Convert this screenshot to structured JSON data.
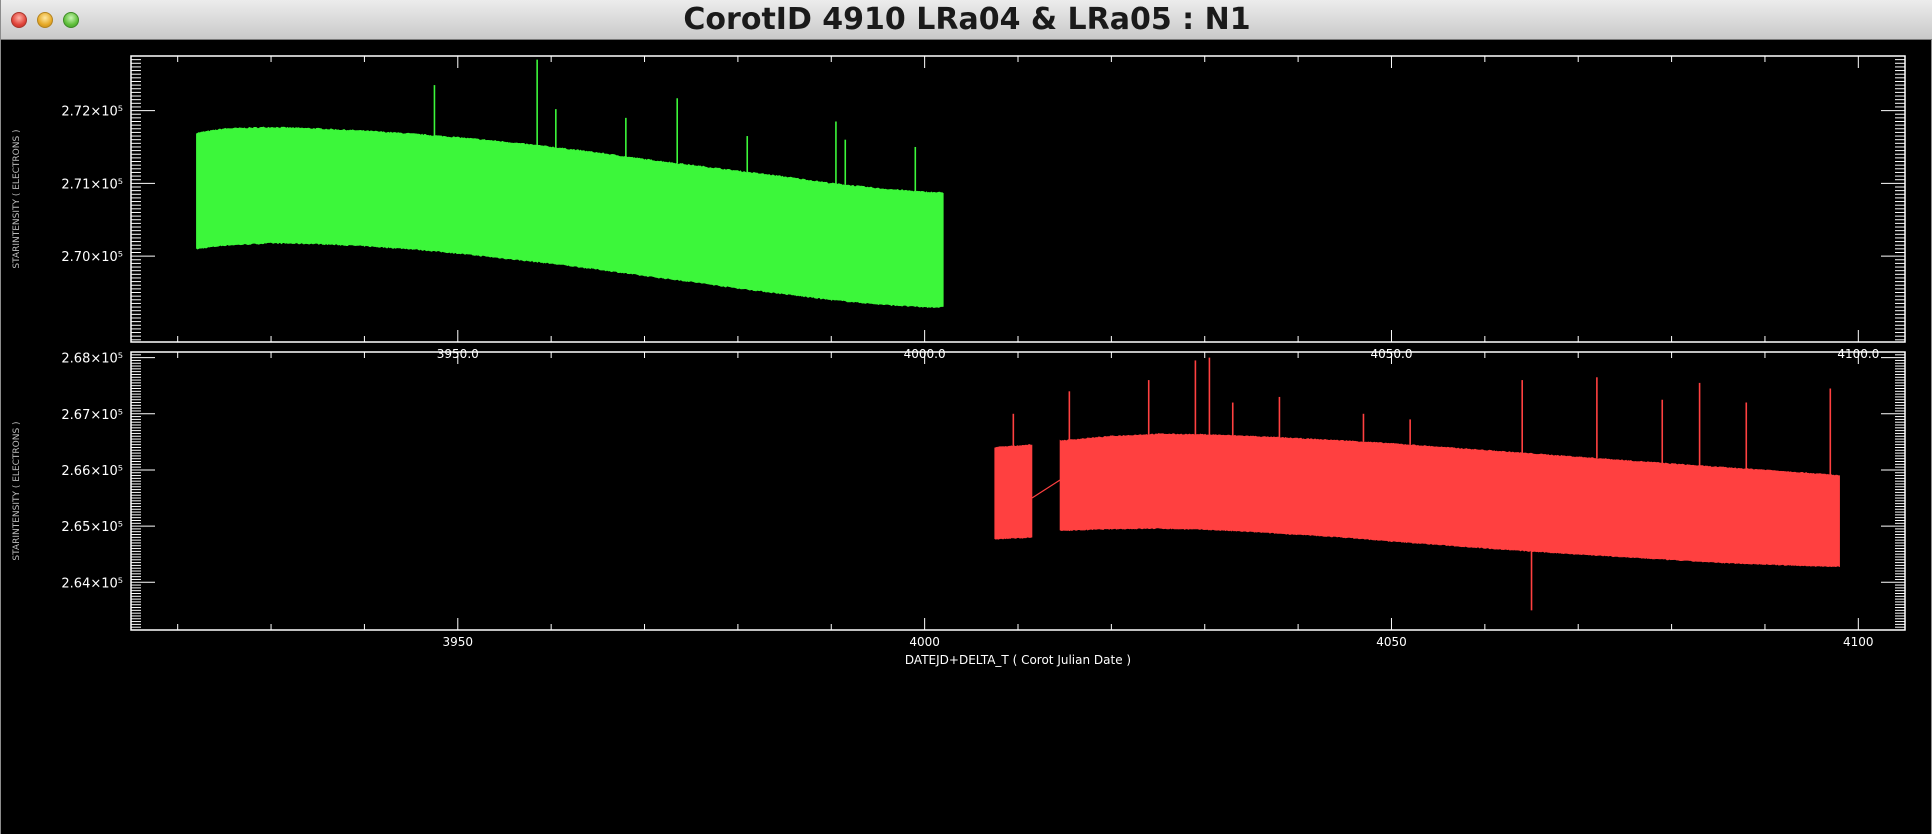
{
  "window": {
    "title": "CorotID 4910 LRa04 & LRa05 : N1",
    "controls": [
      "close-icon",
      "minimize-icon",
      "maximize-icon"
    ]
  },
  "chart_data": [
    {
      "type": "line",
      "panel": "top",
      "title": "",
      "xlabel": "",
      "ylabel": "STARINTENSITY ( ELECTRONS )",
      "xlim": [
        3915,
        4105
      ],
      "ylim": [
        268820.0,
        272750.0
      ],
      "x_ticks": [
        3950,
        4000,
        4050,
        4100
      ],
      "x_tick_labels": [
        "3950.0",
        "4000.0",
        "4050.0",
        "4100.0"
      ],
      "y_ticks": [
        270000.0,
        271000.0,
        272000.0
      ],
      "y_tick_labels": [
        "2.70×10⁵",
        "2.71×10⁵",
        "2.72×10⁵"
      ],
      "grid": false,
      "color": "#3cf73a",
      "series": [
        {
          "x": [
            3922,
            3925,
            3930,
            3935,
            3940,
            3945,
            3950,
            3955,
            3960,
            3965,
            3970,
            3975,
            3980,
            3985,
            3990,
            3995,
            4000,
            4002
          ],
          "upper": [
            271690.0,
            271750.0,
            271770.0,
            271750.0,
            271720.0,
            271680.0,
            271630.0,
            271570.0,
            271500.0,
            271420.0,
            271330.0,
            271250.0,
            271170.0,
            271090.0,
            271000.0,
            270930.0,
            270880.0,
            270870.0
          ],
          "lower": [
            270100.0,
            270150.0,
            270180.0,
            270170.0,
            270140.0,
            270100.0,
            270040.0,
            269970.0,
            269900.0,
            269820.0,
            269730.0,
            269650.0,
            269560.0,
            269480.0,
            269400.0,
            269340.0,
            269300.0,
            269300.0
          ]
        }
      ],
      "spikes": [
        {
          "x": 3947.5,
          "y": 272350.0
        },
        {
          "x": 3958.5,
          "y": 272700.0
        },
        {
          "x": 3960.5,
          "y": 272020.0
        },
        {
          "x": 3968.0,
          "y": 271900.0
        },
        {
          "x": 3973.5,
          "y": 272170.0
        },
        {
          "x": 3981.0,
          "y": 271650.0
        },
        {
          "x": 3990.5,
          "y": 271850.0
        },
        {
          "x": 3991.5,
          "y": 271600.0
        },
        {
          "x": 3999.0,
          "y": 271500.0
        }
      ]
    },
    {
      "type": "line",
      "panel": "bottom",
      "title": "",
      "xlabel": "DATEJD+DELTA_T ( Corot Julian Date )",
      "ylabel": "STARINTENSITY ( ELECTRONS )",
      "xlim": [
        3915,
        4105
      ],
      "ylim": [
        263150.0,
        268100.0
      ],
      "x_ticks": [
        3950,
        4000,
        4050,
        4100
      ],
      "x_tick_labels": [
        "3950",
        "4000",
        "4050",
        "4100"
      ],
      "y_ticks": [
        264000.0,
        265000.0,
        266000.0,
        267000.0,
        268000.0
      ],
      "y_tick_labels": [
        "2.64×10⁵",
        "2.65×10⁵",
        "2.66×10⁵",
        "2.67×10⁵",
        "2.68×10⁵"
      ],
      "grid": false,
      "color": "#ff4040",
      "series": [
        {
          "x": [
            4007.5,
            4011.5
          ],
          "upper": [
            266400.0,
            266450.0
          ],
          "lower": [
            264770.0,
            264800.0
          ]
        },
        {
          "x": [
            4014.5,
            4020,
            4025,
            4030,
            4035,
            4040,
            4045,
            4050,
            4055,
            4060,
            4065,
            4070,
            4075,
            4080,
            4085,
            4090,
            4095,
            4098
          ],
          "upper": [
            266520.0,
            266600.0,
            266640.0,
            266630.0,
            266600.0,
            266560.0,
            266520.0,
            266470.0,
            266410.0,
            266350.0,
            266290.0,
            266230.0,
            266170.0,
            266110.0,
            266050.0,
            266000.0,
            265940.0,
            265900.0
          ],
          "lower": [
            264920.0,
            264950.0,
            264960.0,
            264940.0,
            264900.0,
            264850.0,
            264800.0,
            264730.0,
            264670.0,
            264610.0,
            264550.0,
            264500.0,
            264450.0,
            264400.0,
            264350.0,
            264320.0,
            264290.0,
            264280.0
          ]
        }
      ],
      "bridge": [
        {
          "x": 4011.5,
          "y": 265500.0
        },
        {
          "x": 4014.5,
          "y": 265820.0
        }
      ],
      "spikes": [
        {
          "x": 4009.5,
          "y": 267000.0
        },
        {
          "x": 4015.5,
          "y": 267400.0
        },
        {
          "x": 4024.0,
          "y": 267600.0
        },
        {
          "x": 4029.0,
          "y": 267950.0
        },
        {
          "x": 4030.5,
          "y": 268000.0
        },
        {
          "x": 4033.0,
          "y": 267200.0
        },
        {
          "x": 4038.0,
          "y": 267300.0
        },
        {
          "x": 4047.0,
          "y": 267000.0
        },
        {
          "x": 4052.0,
          "y": 266900.0
        },
        {
          "x": 4064.0,
          "y": 267600.0
        },
        {
          "x": 4072.0,
          "y": 267650.0
        },
        {
          "x": 4079.0,
          "y": 267250.0
        },
        {
          "x": 4083.0,
          "y": 267550.0
        },
        {
          "x": 4088.0,
          "y": 267200.0
        },
        {
          "x": 4097.0,
          "y": 267450.0
        },
        {
          "x": 4065.0,
          "y": 263500.0
        }
      ]
    }
  ]
}
